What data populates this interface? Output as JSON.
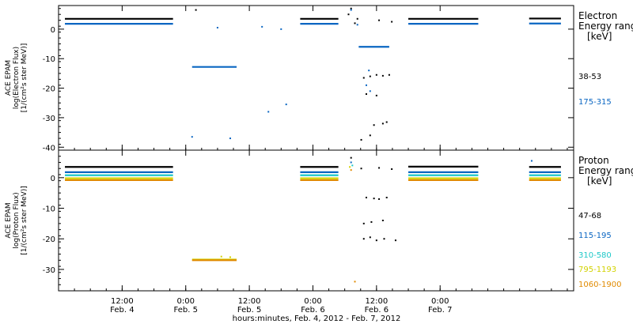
{
  "chart_data": [
    {
      "type": "scatter",
      "panel": "electron",
      "ylabel_lines": [
        "ACE EPAM",
        "log(Electron Flux)",
        "[1/(cm²s ster MeV)]"
      ],
      "yticks": [
        0,
        -10,
        -20,
        -30,
        -40
      ],
      "ylim": [
        -41,
        8
      ],
      "legend_title": [
        "Electron",
        "Energy ranges",
        "[keV]"
      ],
      "legend_placement": "right",
      "series": [
        {
          "label": "38-53",
          "color": "#000000",
          "segments": [
            [
              0.05,
              0.9,
              3.5
            ],
            [
              1.9,
              2.2,
              3.5
            ],
            [
              2.75,
              3.3,
              3.5
            ],
            [
              3.7,
              3.95,
              3.6
            ]
          ],
          "scatter": [
            [
              1.08,
              6.5
            ],
            [
              2.28,
              5.0
            ],
            [
              2.3,
              7.0
            ],
            [
              2.33,
              2.0
            ],
            [
              2.35,
              3.5
            ],
            [
              2.38,
              -37.5
            ],
            [
              2.4,
              -16.5
            ],
            [
              2.45,
              -16.0
            ],
            [
              2.5,
              -15.5
            ],
            [
              2.55,
              -15.8
            ],
            [
              2.6,
              -15.5
            ],
            [
              2.42,
              -22.0
            ],
            [
              2.5,
              -22.5
            ],
            [
              2.48,
              -32.5
            ],
            [
              2.55,
              -32.0
            ],
            [
              2.58,
              -31.5
            ],
            [
              2.45,
              -36.0
            ],
            [
              2.62,
              2.5
            ],
            [
              2.52,
              3.0
            ]
          ]
        },
        {
          "label": "175-315",
          "color": "#0a66c2",
          "segments": [
            [
              0.05,
              0.9,
              1.8
            ],
            [
              1.9,
              2.2,
              1.8
            ],
            [
              2.75,
              3.3,
              1.8
            ],
            [
              3.7,
              3.95,
              1.9
            ],
            [
              1.05,
              1.4,
              -12.8
            ],
            [
              2.36,
              2.6,
              -6.0
            ]
          ],
          "scatter": [
            [
              1.25,
              0.5
            ],
            [
              1.6,
              0.8
            ],
            [
              1.75,
              0.0
            ],
            [
              1.05,
              -36.5
            ],
            [
              1.35,
              -37.0
            ],
            [
              1.65,
              -28.0
            ],
            [
              1.79,
              -25.5
            ],
            [
              2.42,
              -19.0
            ],
            [
              2.45,
              -21.0
            ],
            [
              2.3,
              6.5
            ],
            [
              2.35,
              1.5
            ],
            [
              2.44,
              -14.0
            ]
          ]
        }
      ]
    },
    {
      "type": "scatter",
      "panel": "proton",
      "ylabel_lines": [
        "ACE EPAM",
        "log(Proton Flux)",
        "[1/(cm²s ster MeV)]"
      ],
      "yticks": [
        0,
        -10,
        -20,
        -30
      ],
      "ylim": [
        -37,
        9
      ],
      "legend_title": [
        "Proton",
        "Energy ranges",
        "[keV]"
      ],
      "legend_placement": "right",
      "series": [
        {
          "label": "47-68",
          "color": "#000000",
          "segments": [
            [
              0.05,
              0.9,
              3.5
            ],
            [
              1.9,
              2.2,
              3.5
            ],
            [
              2.75,
              3.3,
              3.6
            ],
            [
              3.7,
              3.95,
              3.5
            ]
          ],
          "scatter": [
            [
              2.3,
              6.5
            ],
            [
              2.38,
              3.0
            ],
            [
              2.42,
              -6.5
            ],
            [
              2.48,
              -6.8
            ],
            [
              2.52,
              -7.0
            ],
            [
              2.58,
              -6.5
            ],
            [
              2.4,
              -15.0
            ],
            [
              2.46,
              -14.5
            ],
            [
              2.55,
              -14.0
            ],
            [
              2.4,
              -20.0
            ],
            [
              2.45,
              -19.5
            ],
            [
              2.5,
              -20.5
            ],
            [
              2.56,
              -20.0
            ],
            [
              2.65,
              -20.5
            ],
            [
              2.62,
              2.8
            ],
            [
              2.52,
              3.2
            ]
          ]
        },
        {
          "label": "115-195",
          "color": "#0a66c2",
          "segments": [
            [
              0.05,
              0.9,
              1.8
            ],
            [
              1.9,
              2.2,
              1.8
            ],
            [
              2.75,
              3.3,
              1.8
            ],
            [
              3.7,
              3.95,
              1.8
            ]
          ],
          "scatter": [
            [
              2.3,
              5.0
            ],
            [
              3.72,
              5.5
            ]
          ]
        },
        {
          "label": "310-580",
          "color": "#1ec8c8",
          "segments": [
            [
              0.05,
              0.9,
              0.8
            ],
            [
              1.9,
              2.2,
              0.8
            ],
            [
              2.75,
              3.3,
              0.8
            ],
            [
              3.7,
              3.95,
              0.8
            ]
          ],
          "scatter": [
            [
              2.31,
              4.0
            ]
          ]
        },
        {
          "label": "795-1193",
          "color": "#d2d200",
          "segments": [
            [
              0.05,
              0.9,
              -0.2
            ],
            [
              1.9,
              2.2,
              -0.2
            ],
            [
              2.75,
              3.3,
              -0.2
            ],
            [
              3.7,
              3.95,
              -0.2
            ],
            [
              1.05,
              1.4,
              -26.8
            ]
          ],
          "scatter": [
            [
              2.29,
              3.5
            ],
            [
              1.28,
              -25.8
            ],
            [
              1.35,
              -26.0
            ]
          ]
        },
        {
          "label": "1060-1900",
          "color": "#e08a00",
          "segments": [
            [
              0.05,
              0.9,
              -0.8
            ],
            [
              1.9,
              2.2,
              -0.8
            ],
            [
              2.75,
              3.3,
              -0.8
            ],
            [
              3.7,
              3.95,
              -0.8
            ],
            [
              1.05,
              1.4,
              -27.0
            ]
          ],
          "scatter": [
            [
              2.3,
              2.5
            ],
            [
              2.33,
              -34.0
            ]
          ]
        }
      ]
    }
  ],
  "x_axis": {
    "xlabel": "hours:minutes, Feb.  4, 2012 - Feb.  7, 2012",
    "xlim": [
      0,
      4.05
    ],
    "major_ticks": [
      {
        "x": 0.5,
        "time": "12:00",
        "date": "Feb. 4"
      },
      {
        "x": 1.0,
        "time": "0:00",
        "date": "Feb. 5"
      },
      {
        "x": 1.5,
        "time": "12:00",
        "date": "Feb. 5"
      },
      {
        "x": 2.0,
        "time": "0:00",
        "date": "Feb. 6"
      },
      {
        "x": 2.5,
        "time": "12:00",
        "date": "Feb. 6"
      },
      {
        "x": 3.0,
        "time": "0:00",
        "date": "Feb. 7"
      }
    ],
    "minor_ticks_per_day": 8
  }
}
